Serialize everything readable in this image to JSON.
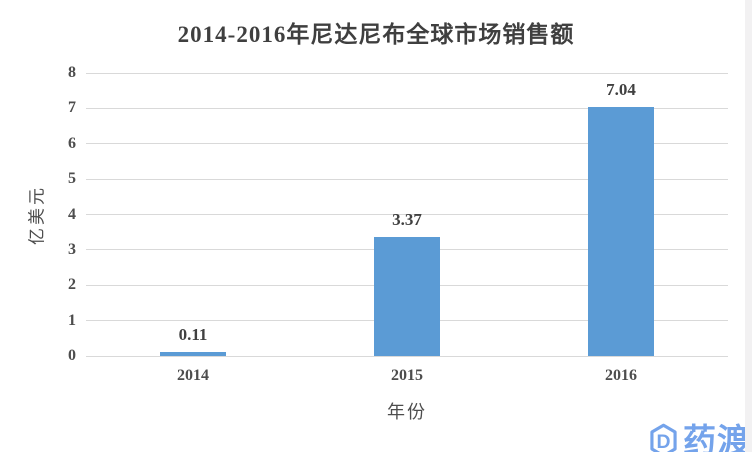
{
  "chart_data": {
    "type": "bar",
    "title": "2014-2016年尼达尼布全球市场销售额",
    "categories": [
      "2014",
      "2015",
      "2016"
    ],
    "values": [
      0.11,
      3.37,
      7.04
    ],
    "data_labels": [
      "0.11",
      "3.37",
      "7.04"
    ],
    "xlabel": "年份",
    "ylabel": "亿美元",
    "ylim": [
      0,
      8
    ],
    "yticks": [
      0,
      1,
      2,
      3,
      4,
      5,
      6,
      7,
      8
    ],
    "grid": true,
    "legend_position": "none",
    "bar_color": "#5b9bd5",
    "gridline_color": "#d9d9d9",
    "text_color": "#404040"
  },
  "watermark": {
    "icon": "pharmacodia-logo-icon",
    "text": "药渡",
    "color": "#74a3eb"
  }
}
